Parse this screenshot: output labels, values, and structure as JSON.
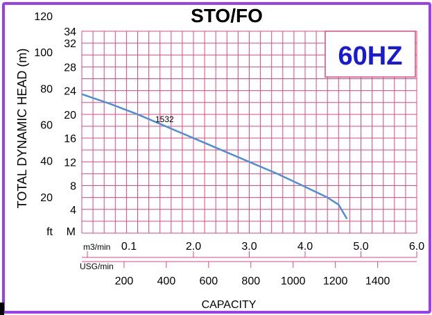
{
  "chart_data": {
    "type": "line",
    "title": "STO/FO",
    "badge": "60HZ",
    "ylabel": "TOTAL DYNAMIC HEAD (m)",
    "xlabel": "CAPACITY",
    "x_unit": "m3/min",
    "x_unit_secondary": "USG/min",
    "y_unit": "M",
    "y_unit_secondary": "ft",
    "xlim": [
      0,
      6.0
    ],
    "ylim": [
      0,
      34
    ],
    "y_ticks_m": [
      "34",
      "32",
      "28",
      "24",
      "20",
      "16",
      "12",
      "8",
      "4"
    ],
    "y_ticks_ft": [
      "120",
      "100",
      "80",
      "60",
      "40",
      "20"
    ],
    "x_ticks_m3": [
      "0.1",
      "2.0",
      "3.0",
      "4.0",
      "5.0",
      "6.0"
    ],
    "x_ticks_usg": [
      "200",
      "400",
      "600",
      "800",
      "1000",
      "1200",
      "1400"
    ],
    "series": [
      {
        "name": "1532",
        "x": [
          0.0,
          0.5,
          1.0,
          1.5,
          2.0,
          2.5,
          3.0,
          3.5,
          4.0,
          4.4,
          4.6,
          4.75
        ],
        "y": [
          23.4,
          21.8,
          20.0,
          18.0,
          16.0,
          14.0,
          12.0,
          10.0,
          7.8,
          6.0,
          4.8,
          2.4
        ]
      }
    ],
    "colors": {
      "frame": "#9b3df0",
      "grid": "#e0477a",
      "line": "#4a90d9",
      "badge": "#1a1ad6"
    }
  }
}
